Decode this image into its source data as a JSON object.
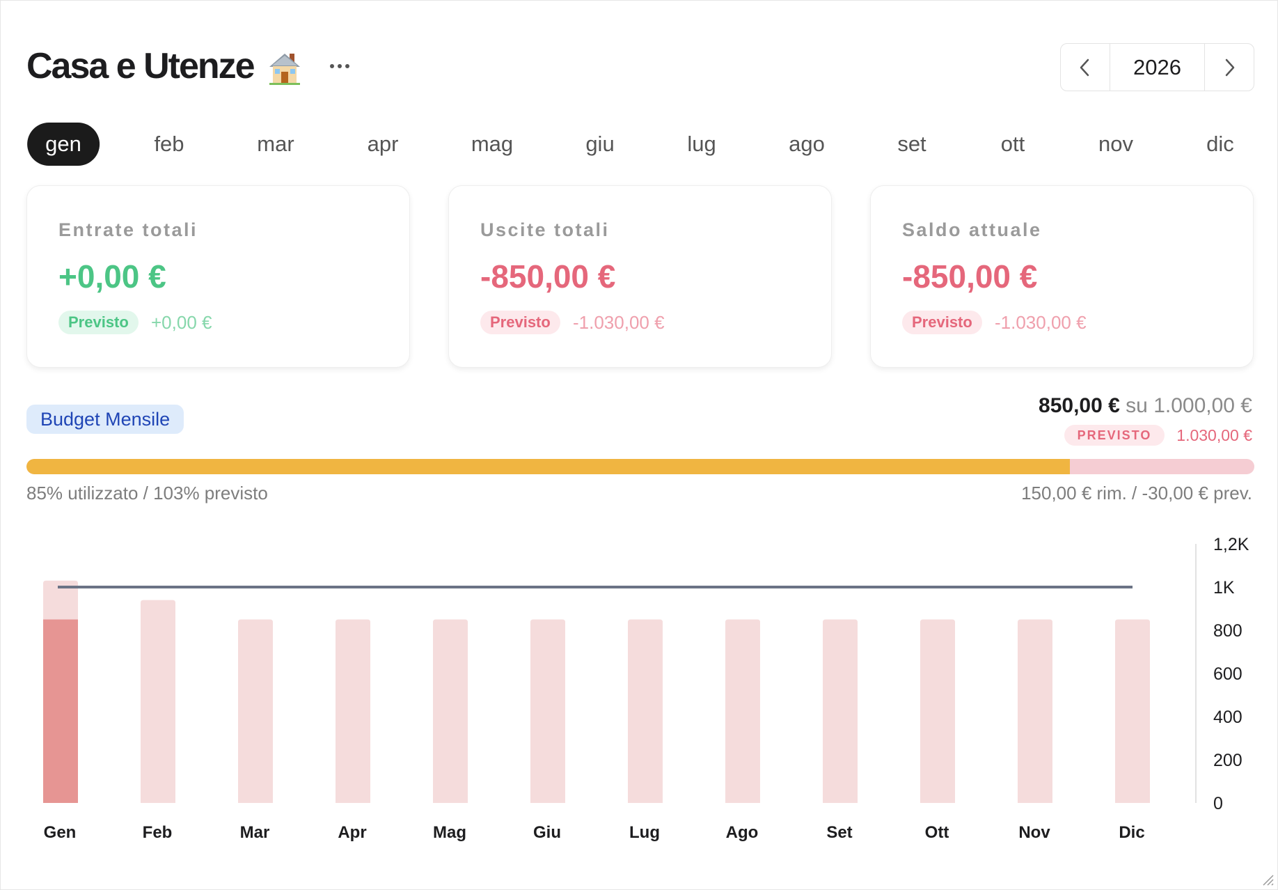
{
  "header": {
    "title": "Casa e Utenze",
    "title_icon": "house-icon",
    "more_icon": "ellipsis-icon",
    "year": "2026",
    "prev_icon": "chevron-left-icon",
    "next_icon": "chevron-right-icon"
  },
  "months": [
    "gen",
    "feb",
    "mar",
    "apr",
    "mag",
    "giu",
    "lug",
    "ago",
    "set",
    "ott",
    "nov",
    "dic"
  ],
  "active_month": "gen",
  "cards": [
    {
      "label": "Entrate totali",
      "amount": "+0,00 €",
      "pill": "Previsto",
      "forecast": "+0,00 €",
      "tone": "green"
    },
    {
      "label": "Uscite totali",
      "amount": "-850,00 €",
      "pill": "Previsto",
      "forecast": "-1.030,00 €",
      "tone": "red"
    },
    {
      "label": "Saldo attuale",
      "amount": "-850,00 €",
      "pill": "Previsto",
      "forecast": "-1.030,00 €",
      "tone": "red"
    }
  ],
  "budget": {
    "badge": "Budget Mensile",
    "spent": "850,00 €",
    "of_total": "su 1.000,00 €",
    "forecast_pill": "PREVISTO",
    "forecast_value": "1.030,00 €",
    "used_fraction": 0.85,
    "usage_text": "85% utilizzato / 103% previsto",
    "remaining_text": "150,00 € rim. / -30,00 € prev.",
    "colors": {
      "used": "#f0b541",
      "track": "#f5cdd3"
    }
  },
  "chart_data": {
    "type": "bar",
    "categories": [
      "Gen",
      "Feb",
      "Mar",
      "Apr",
      "Mag",
      "Giu",
      "Lug",
      "Ago",
      "Set",
      "Ott",
      "Nov",
      "Dic"
    ],
    "series": [
      {
        "values": [
          850,
          0,
          0,
          0,
          0,
          0,
          0,
          0,
          0,
          0,
          0,
          0
        ],
        "color": "#e69593"
      },
      {
        "values": [
          1030,
          940,
          850,
          850,
          850,
          850,
          850,
          850,
          850,
          850,
          850,
          850
        ],
        "color": "#f5dcdc"
      }
    ],
    "reference_line": {
      "value": 1000,
      "color": "#6b7385"
    },
    "y_ticks": [
      "0",
      "200",
      "400",
      "600",
      "800",
      "1K",
      "1,2K"
    ],
    "ylim": [
      0,
      1200
    ],
    "y_axis_side": "right",
    "grid": false
  }
}
